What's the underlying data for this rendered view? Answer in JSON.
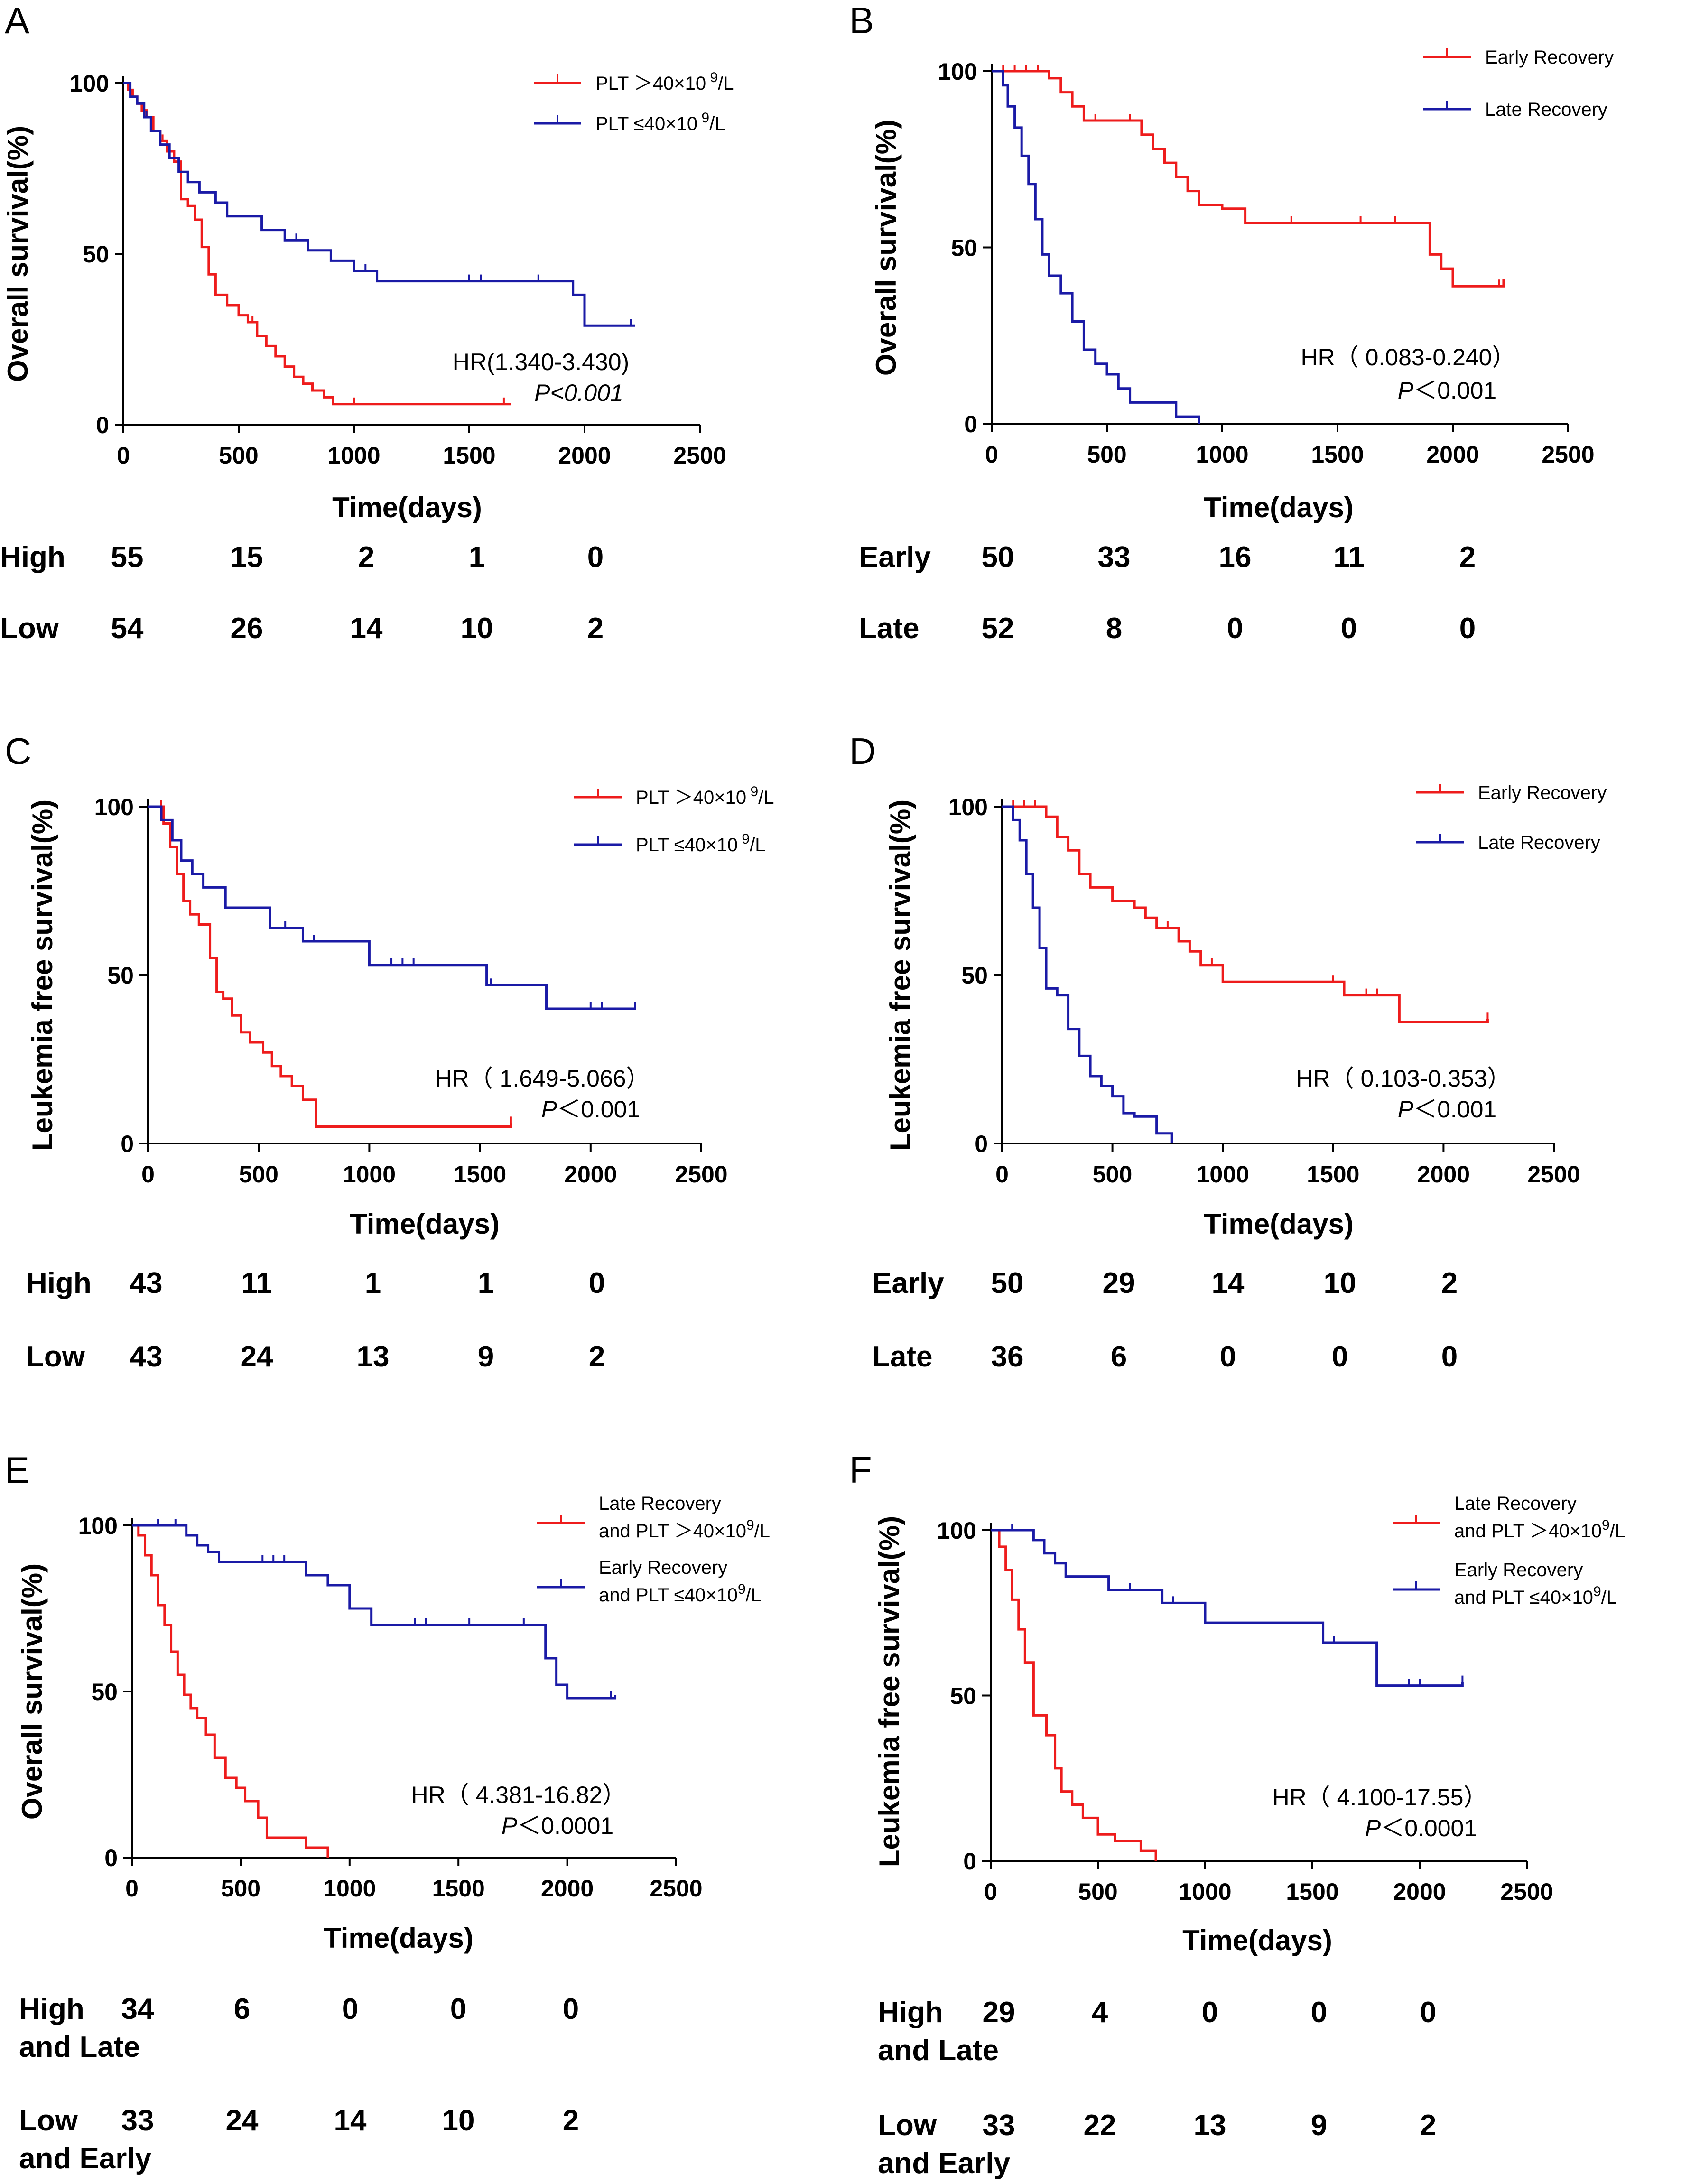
{
  "colors": {
    "red": "#ee1c1c",
    "blue": "#1a1aa6",
    "axis": "#000000"
  },
  "chart_data": [
    {
      "panel": "A",
      "type": "line",
      "xlabel": "Time(days)",
      "ylabel": "Overall survival(%)",
      "xlim": [
        0,
        2500
      ],
      "ylim": [
        0,
        100
      ],
      "xticks": [
        "0",
        "500",
        "1000",
        "1500",
        "2000",
        "2500"
      ],
      "yticks": [
        "0",
        "50",
        "100"
      ],
      "hr": "HR(1.340-3.430)",
      "p": "P<0.001",
      "p_italic": true,
      "series": [
        {
          "name": "PLT >40×10 9/L",
          "name_main": "PLT ＞40×10",
          "name_sup": "9",
          "name_tail": "/L",
          "color": "#ee1c1c",
          "x": [
            0,
            20,
            40,
            60,
            80,
            100,
            130,
            160,
            190,
            220,
            250,
            280,
            310,
            340,
            370,
            400,
            450,
            500,
            540,
            580,
            620,
            660,
            700,
            740,
            780,
            820,
            870,
            910,
            1680
          ],
          "y": [
            100,
            98,
            96,
            94,
            92,
            90,
            86,
            83,
            80,
            77,
            66,
            64,
            60,
            52,
            44,
            38,
            35,
            32,
            30,
            26,
            23,
            20,
            17,
            14,
            12,
            10,
            8,
            6,
            6
          ],
          "censor_x": [
            40,
            80,
            130,
            170,
            560,
            700,
            1000,
            1650
          ]
        },
        {
          "name": "PLT ≤40×10 9/L",
          "name_main": "PLT ≤40×10",
          "name_sup": "9",
          "name_tail": "/L",
          "color": "#1a1aa6",
          "x": [
            0,
            30,
            60,
            90,
            120,
            160,
            200,
            240,
            280,
            330,
            400,
            450,
            600,
            700,
            800,
            900,
            1000,
            1100,
            1900,
            1950,
            2000,
            2220
          ],
          "y": [
            100,
            96,
            94,
            90,
            86,
            82,
            78,
            74,
            71,
            68,
            65,
            61,
            57,
            54,
            51,
            48,
            45,
            42,
            42,
            38,
            29,
            29
          ],
          "censor_x": [
            100,
            200,
            700,
            750,
            1050,
            1500,
            1550,
            1800,
            2200
          ]
        }
      ],
      "risk_table": {
        "timepoints": [
          "0",
          "500",
          "1000",
          "1500",
          "2000"
        ],
        "rows": [
          {
            "lines": [
              "High"
            ],
            "values": [
              "55",
              "15",
              "2",
              "1",
              "0"
            ]
          },
          {
            "lines": [
              "Low"
            ],
            "values": [
              "54",
              "26",
              "14",
              "10",
              "2"
            ]
          }
        ]
      }
    },
    {
      "panel": "B",
      "type": "line",
      "xlabel": "Time(days)",
      "ylabel": "Overall survival(%)",
      "xlim": [
        0,
        2500
      ],
      "ylim": [
        0,
        100
      ],
      "xticks": [
        "0",
        "500",
        "1000",
        "1500",
        "2000",
        "2500"
      ],
      "yticks": [
        "0",
        "50",
        "100"
      ],
      "hr": "HR（ 0.083-0.240）",
      "p": "P＜0.001",
      "p_italic": false,
      "series": [
        {
          "name": "Early Recovery",
          "name_main": "Early Recovery",
          "name_sup": "",
          "name_tail": "",
          "color": "#ee1c1c",
          "x": [
            0,
            250,
            300,
            350,
            400,
            600,
            650,
            700,
            750,
            800,
            850,
            900,
            1000,
            1100,
            1900,
            1950,
            2000,
            2220
          ],
          "y": [
            100,
            98,
            94,
            90,
            86,
            86,
            82,
            78,
            74,
            70,
            66,
            62,
            61,
            57,
            48,
            44,
            39,
            41
          ],
          "censor_x": [
            50,
            100,
            150,
            200,
            450,
            600,
            700,
            1300,
            1600,
            1750,
            2200
          ]
        },
        {
          "name": "Late Recovery",
          "name_main": "Late Recovery",
          "name_sup": "",
          "name_tail": "",
          "color": "#1a1aa6",
          "x": [
            0,
            50,
            70,
            100,
            130,
            160,
            190,
            220,
            250,
            300,
            350,
            400,
            450,
            500,
            550,
            600,
            800,
            900
          ],
          "y": [
            100,
            96,
            90,
            84,
            76,
            68,
            58,
            48,
            42,
            37,
            29,
            21,
            17,
            14,
            10,
            6,
            2,
            0
          ],
          "censor_x": []
        }
      ],
      "risk_table": {
        "timepoints": [
          "0",
          "500",
          "1000",
          "1500",
          "2000"
        ],
        "rows": [
          {
            "lines": [
              "Early"
            ],
            "values": [
              "50",
              "33",
              "16",
              "11",
              "2"
            ]
          },
          {
            "lines": [
              "Late"
            ],
            "values": [
              "52",
              "8",
              "0",
              "0",
              "0"
            ]
          }
        ]
      }
    },
    {
      "panel": "C",
      "type": "line",
      "xlabel": "Time(days)",
      "ylabel": "Leukemia free survival(%)",
      "xlim": [
        0,
        2500
      ],
      "ylim": [
        0,
        100
      ],
      "xticks": [
        "0",
        "500",
        "1000",
        "1500",
        "2000",
        "2500"
      ],
      "yticks": [
        "0",
        "50",
        "100"
      ],
      "hr": "HR（ 1.649-5.066）",
      "p": "P＜0.001",
      "p_italic": false,
      "series": [
        {
          "name": "PLT >40×10 9/L",
          "name_main": "PLT ＞40×10",
          "name_sup": "9",
          "name_tail": "/L",
          "color": "#ee1c1c",
          "x": [
            0,
            70,
            100,
            130,
            160,
            190,
            230,
            280,
            310,
            340,
            380,
            420,
            460,
            520,
            560,
            600,
            650,
            700,
            760,
            1640
          ],
          "y": [
            100,
            95,
            88,
            80,
            72,
            68,
            65,
            55,
            45,
            43,
            38,
            33,
            30,
            27,
            23,
            20,
            17,
            13,
            5,
            6
          ],
          "censor_x": [
            60,
            1640
          ]
        },
        {
          "name": "PLT ≤40×10 9/L",
          "name_main": "PLT ≤40×10",
          "name_sup": "9",
          "name_tail": "/L",
          "color": "#1a1aa6",
          "x": [
            0,
            60,
            110,
            150,
            200,
            250,
            350,
            550,
            700,
            1000,
            1530,
            1800,
            2200
          ],
          "y": [
            100,
            96,
            90,
            84,
            80,
            76,
            70,
            64,
            60,
            53,
            47,
            40,
            40
          ],
          "censor_x": [
            200,
            620,
            750,
            1100,
            1150,
            1200,
            1550,
            2000,
            2050,
            2200
          ]
        }
      ],
      "risk_table": {
        "timepoints": [
          "0",
          "500",
          "1000",
          "1500",
          "2000"
        ],
        "rows": [
          {
            "lines": [
              "High"
            ],
            "values": [
              "43",
              "11",
              "1",
              "1",
              "0"
            ]
          },
          {
            "lines": [
              "Low"
            ],
            "values": [
              "43",
              "24",
              "13",
              "9",
              "2"
            ]
          }
        ]
      }
    },
    {
      "panel": "D",
      "type": "line",
      "xlabel": "Time(days)",
      "ylabel": "Leukemia free survival(%)",
      "xlim": [
        0,
        2500
      ],
      "ylim": [
        0,
        100
      ],
      "xticks": [
        "0",
        "500",
        "1000",
        "1500",
        "2000",
        "2500"
      ],
      "yticks": [
        "0",
        "50",
        "100"
      ],
      "hr": "HR（ 0.103-0.353）",
      "p": "P＜0.001",
      "p_italic": false,
      "series": [
        {
          "name": "Early Recovery",
          "name_main": "Early Recovery",
          "name_sup": "",
          "name_tail": "",
          "color": "#ee1c1c",
          "x": [
            0,
            200,
            250,
            300,
            350,
            400,
            500,
            600,
            650,
            700,
            800,
            850,
            900,
            1000,
            1550,
            1800,
            2200
          ],
          "y": [
            100,
            97,
            91,
            87,
            80,
            76,
            72,
            70,
            67,
            64,
            60,
            57,
            53,
            48,
            44,
            36,
            37
          ],
          "censor_x": [
            50,
            100,
            150,
            250,
            750,
            950,
            1500,
            1650,
            1700,
            2200
          ]
        },
        {
          "name": "Late Recovery",
          "name_main": "Late Recovery",
          "name_sup": "",
          "name_tail": "",
          "color": "#1a1aa6",
          "x": [
            0,
            50,
            80,
            110,
            140,
            170,
            200,
            250,
            300,
            350,
            400,
            450,
            500,
            550,
            600,
            700,
            770
          ],
          "y": [
            100,
            96,
            90,
            80,
            70,
            58,
            46,
            44,
            34,
            26,
            20,
            17,
            14,
            9,
            8,
            3,
            0
          ],
          "censor_x": []
        }
      ],
      "risk_table": {
        "timepoints": [
          "0",
          "500",
          "1000",
          "1500",
          "2000"
        ],
        "rows": [
          {
            "lines": [
              "Early"
            ],
            "values": [
              "50",
              "29",
              "14",
              "10",
              "2"
            ]
          },
          {
            "lines": [
              "Late"
            ],
            "values": [
              "36",
              "6",
              "0",
              "0",
              "0"
            ]
          }
        ]
      }
    },
    {
      "panel": "E",
      "type": "line",
      "xlabel": "Time(days)",
      "ylabel": "Overall survival(%)",
      "xlim": [
        0,
        2500
      ],
      "ylim": [
        0,
        100
      ],
      "xticks": [
        "0",
        "500",
        "1000",
        "1500",
        "2000",
        "2500"
      ],
      "yticks": [
        "0",
        "50",
        "100"
      ],
      "hr": "HR（ 4.381-16.82）",
      "p": "P＜0.0001",
      "p_italic": false,
      "series": [
        {
          "name": "Late Recovery and PLT >40×10 9/L",
          "name_line1": "Late Recovery",
          "name_main": " and PLT ＞40×10",
          "name_sup": "9",
          "name_tail": "/L",
          "color": "#ee1c1c",
          "x": [
            0,
            30,
            60,
            90,
            120,
            150,
            180,
            210,
            240,
            270,
            300,
            340,
            380,
            430,
            480,
            520,
            580,
            620,
            800,
            900
          ],
          "y": [
            100,
            97,
            91,
            85,
            76,
            70,
            62,
            55,
            49,
            45,
            42,
            37,
            30,
            24,
            21,
            17,
            12,
            6,
            3,
            0
          ],
          "censor_x": []
        },
        {
          "name": "Early Recovery and PLT ≤40×10 9/L",
          "name_line1": "Early Recovery",
          "name_main": " and PLT ≤40×10",
          "name_sup": "9",
          "name_tail": "/L",
          "color": "#1a1aa6",
          "x": [
            0,
            250,
            300,
            350,
            400,
            800,
            900,
            1000,
            1100,
            1900,
            1950,
            2000,
            2220
          ],
          "y": [
            100,
            97,
            94,
            92,
            89,
            85,
            82,
            75,
            70,
            60,
            52,
            48,
            49
          ],
          "censor_x": [
            120,
            200,
            600,
            650,
            700,
            1300,
            1350,
            1550,
            1800,
            2200
          ]
        }
      ],
      "risk_table": {
        "timepoints": [
          "0",
          "500",
          "1000",
          "1500",
          "2000"
        ],
        "rows": [
          {
            "lines": [
              "High",
              "and Late"
            ],
            "values": [
              "34",
              "6",
              "0",
              "0",
              "0"
            ]
          },
          {
            "lines": [
              "Low",
              "and Early"
            ],
            "values": [
              "33",
              "24",
              "14",
              "10",
              "2"
            ]
          }
        ]
      }
    },
    {
      "panel": "F",
      "type": "line",
      "xlabel": "Time(days)",
      "ylabel": "Leukemia free survival(%)",
      "xlim": [
        0,
        2500
      ],
      "ylim": [
        0,
        100
      ],
      "xticks": [
        "0",
        "500",
        "1000",
        "1500",
        "2000",
        "2500"
      ],
      "yticks": [
        "0",
        "50",
        "100"
      ],
      "hr": "HR（ 4.100-17.55）",
      "p": "P＜0.0001",
      "p_italic": false,
      "series": [
        {
          "name": "Late Recovery and PLT >40×10 9/L",
          "name_line1": "Late Recovery",
          "name_main": "and PLT ＞40×10",
          "name_sup": "9",
          "name_tail": "/L",
          "color": "#ee1c1c",
          "x": [
            0,
            40,
            70,
            100,
            130,
            160,
            200,
            260,
            300,
            330,
            380,
            430,
            500,
            580,
            700,
            770
          ],
          "y": [
            100,
            95,
            88,
            79,
            70,
            60,
            44,
            38,
            28,
            21,
            17,
            13,
            8,
            6,
            3,
            0
          ],
          "censor_x": []
        },
        {
          "name": "Early Recovery and PLT ≤40×10 9/L",
          "name_line1": "Early Recovery",
          "name_main": "and PLT ≤40×10",
          "name_sup": "9",
          "name_tail": "/L",
          "color": "#1a1aa6",
          "x": [
            0,
            200,
            250,
            300,
            350,
            550,
            800,
            1000,
            1550,
            1800,
            2200
          ],
          "y": [
            100,
            97,
            93,
            90,
            86,
            82,
            78,
            72,
            66,
            53,
            54
          ],
          "censor_x": [
            100,
            650,
            850,
            1600,
            1950,
            2000,
            2200
          ]
        }
      ],
      "risk_table": {
        "timepoints": [
          "0",
          "500",
          "1000",
          "1500",
          "2000"
        ],
        "rows": [
          {
            "lines": [
              "High",
              "and Late"
            ],
            "values": [
              "29",
              "4",
              "0",
              "0",
              "0"
            ]
          },
          {
            "lines": [
              "Low",
              "and Early"
            ],
            "values": [
              "33",
              "22",
              "13",
              "9",
              "2"
            ]
          }
        ]
      }
    }
  ]
}
